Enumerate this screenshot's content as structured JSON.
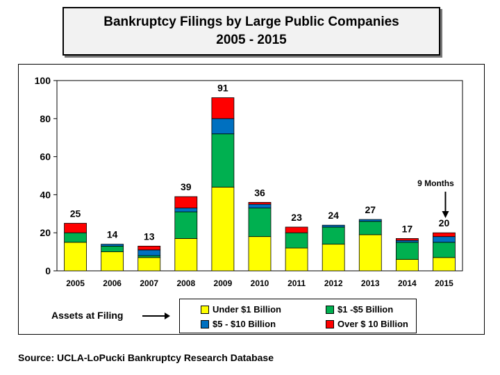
{
  "title": {
    "line1": "Bankruptcy Filings by Large Public Companies",
    "line2": "2005 - 2015"
  },
  "assets_label": "Assets at Filing",
  "source": "Source: UCLA-LoPucki Bankruptcy Research Database",
  "annotation": {
    "text": "9 Months",
    "target_category": "2015"
  },
  "chart_data": {
    "type": "bar",
    "stacked": true,
    "categories": [
      "2005",
      "2006",
      "2007",
      "2008",
      "2009",
      "2010",
      "2011",
      "2012",
      "2013",
      "2014",
      "2015"
    ],
    "series": [
      {
        "name": "Under $1 Billion",
        "color": "#ffff00",
        "values": [
          15,
          10,
          7,
          17,
          44,
          18,
          12,
          14,
          19,
          6,
          7
        ]
      },
      {
        "name": "$1 -$5 Billion",
        "color": "#00b050",
        "values": [
          5,
          3,
          1,
          14,
          28,
          15,
          8,
          9,
          7,
          9,
          8
        ]
      },
      {
        "name": "$5 - $10 Billion",
        "color": "#0070c0",
        "values": [
          0,
          1,
          3,
          2,
          8,
          2,
          0,
          1,
          1,
          1,
          3
        ]
      },
      {
        "name": "Over $ 10 Billion",
        "color": "#ff0000",
        "values": [
          5,
          0,
          2,
          6,
          11,
          1,
          3,
          0,
          0,
          1,
          2
        ]
      }
    ],
    "totals": [
      25,
      14,
      13,
      39,
      91,
      36,
      23,
      24,
      27,
      17,
      20
    ],
    "ylim": [
      0,
      100
    ],
    "yticks": [
      0,
      20,
      40,
      60,
      80,
      100
    ],
    "grid": false,
    "legend_position": "bottom"
  }
}
